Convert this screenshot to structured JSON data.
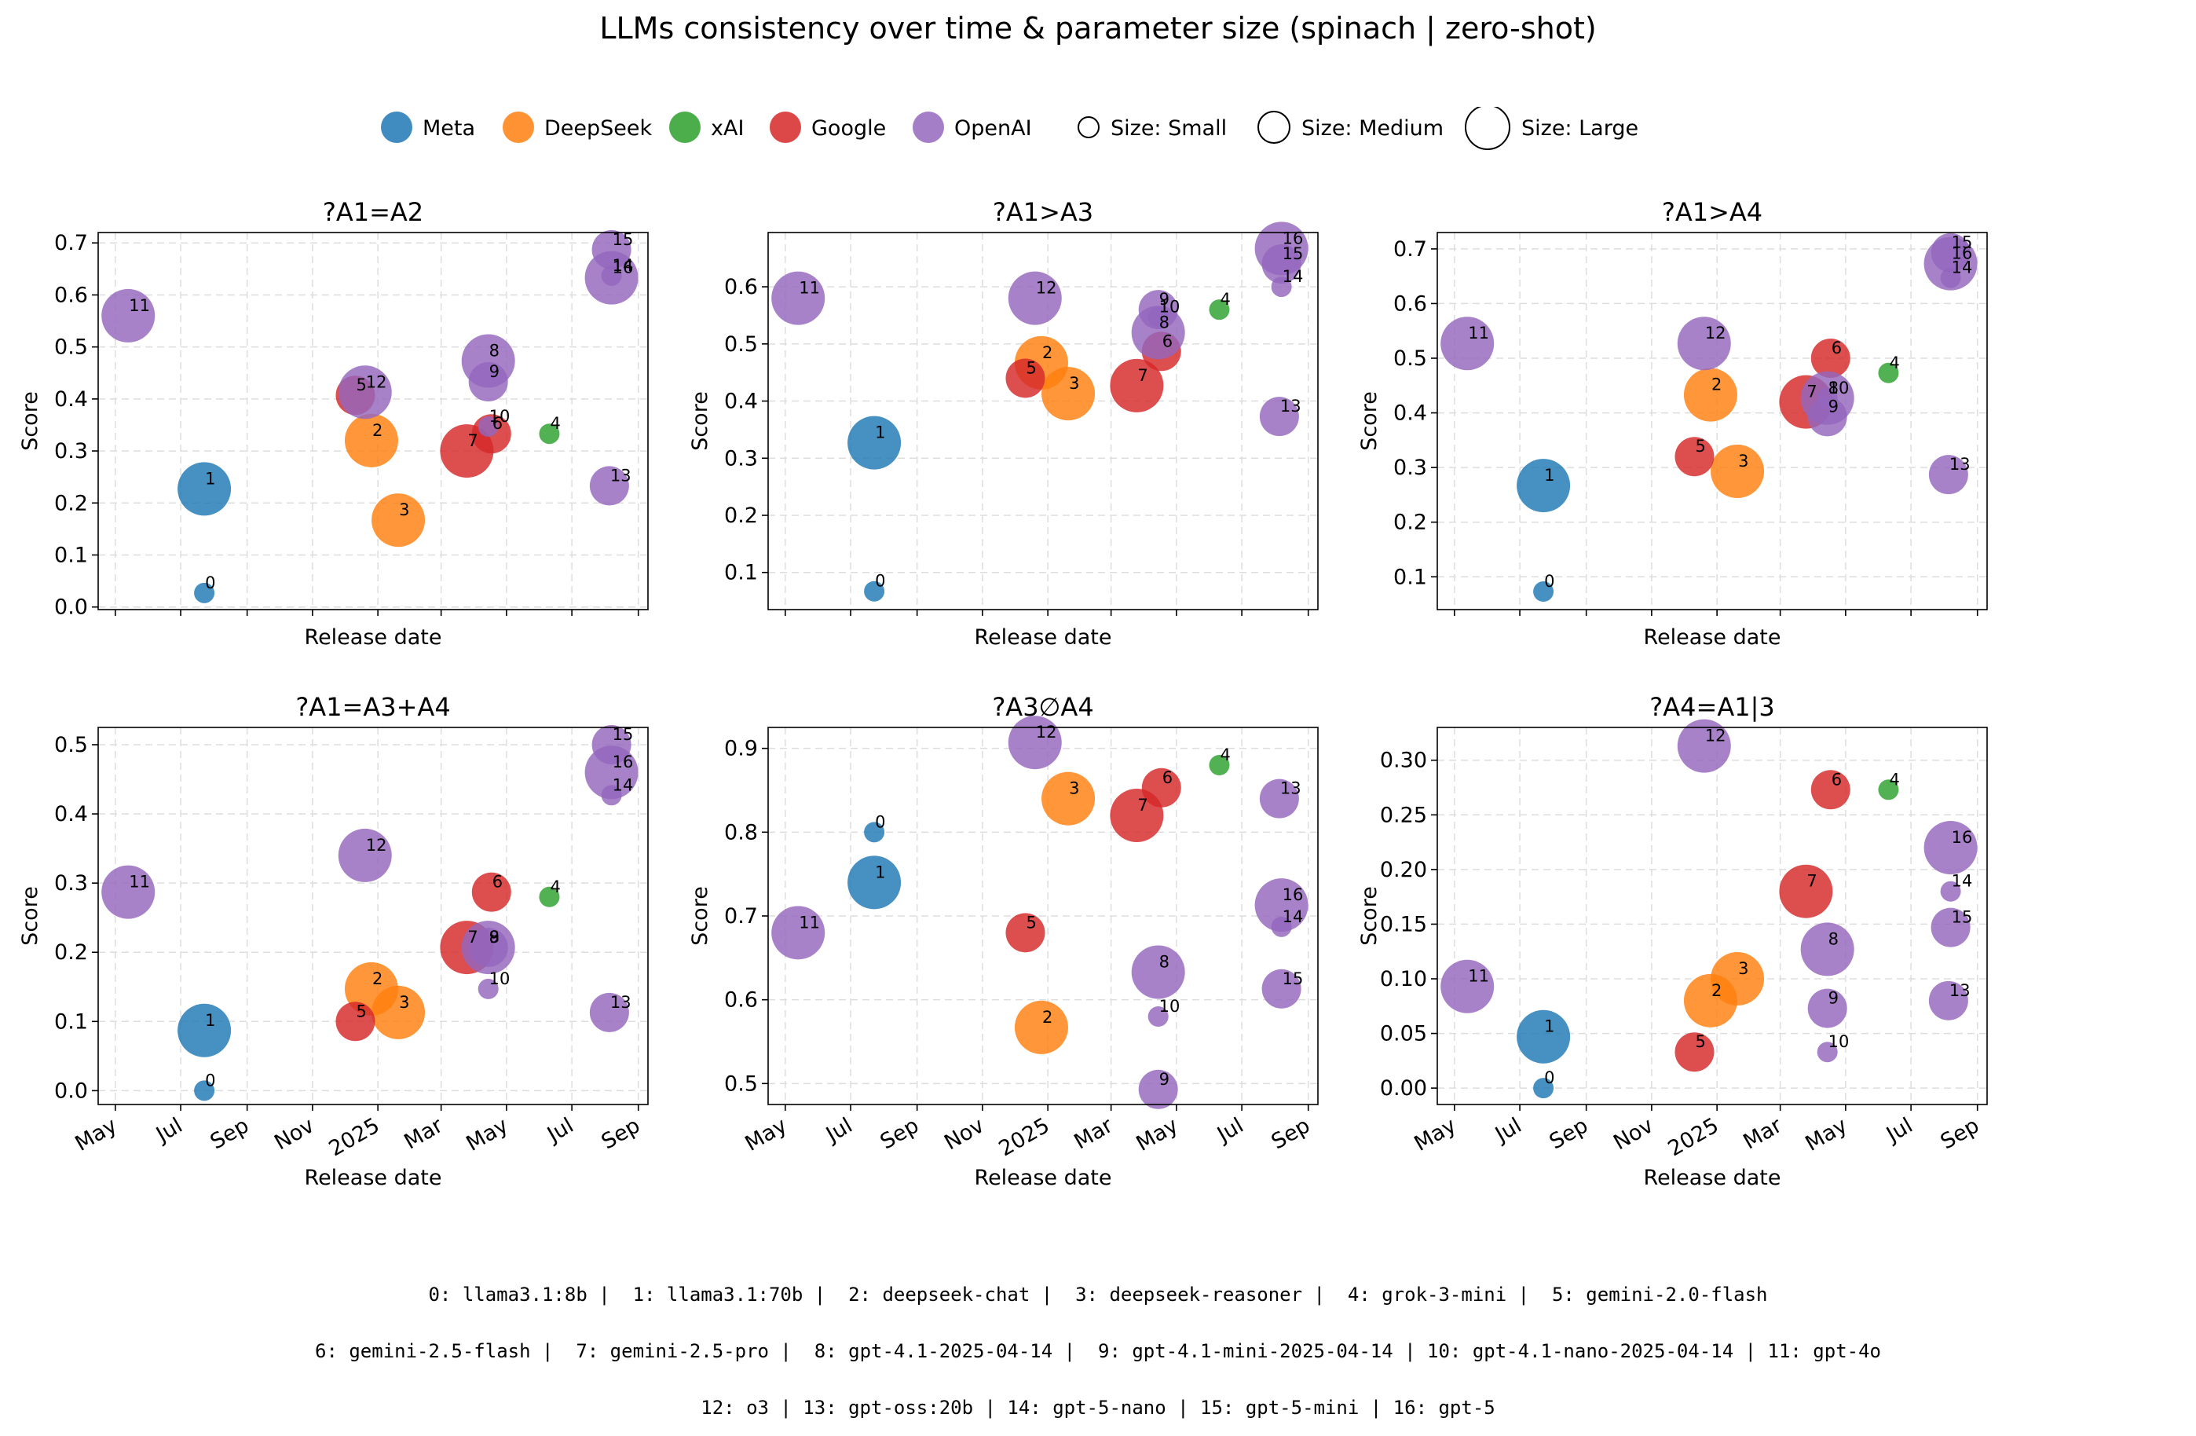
{
  "title": "LLMs consistency over time & parameter size  (spinach | zero-shot)",
  "legend": {
    "vendors": [
      {
        "name": "Meta",
        "color": "#1f77b4"
      },
      {
        "name": "DeepSeek",
        "color": "#ff7f0e"
      },
      {
        "name": "xAI",
        "color": "#2ca02c"
      },
      {
        "name": "Google",
        "color": "#d62728"
      },
      {
        "name": "OpenAI",
        "color": "#9467bd"
      }
    ],
    "sizes": [
      "Size: Small",
      "Size: Medium",
      "Size: Large"
    ]
  },
  "models": [
    {
      "id": 0,
      "name": "llama3.1:8b",
      "vendor": "Meta",
      "size": "small",
      "date": "2024-07-23"
    },
    {
      "id": 1,
      "name": "llama3.1:70b",
      "vendor": "Meta",
      "size": "large",
      "date": "2024-07-23"
    },
    {
      "id": 2,
      "name": "deepseek-chat",
      "vendor": "DeepSeek",
      "size": "large",
      "date": "2024-12-26"
    },
    {
      "id": 3,
      "name": "deepseek-reasoner",
      "vendor": "DeepSeek",
      "size": "large",
      "date": "2025-01-20"
    },
    {
      "id": 4,
      "name": "grok-3-mini",
      "vendor": "xAI",
      "size": "small",
      "date": "2025-06-10"
    },
    {
      "id": 5,
      "name": "gemini-2.0-flash",
      "vendor": "Google",
      "size": "medium",
      "date": "2024-12-11"
    },
    {
      "id": 6,
      "name": "gemini-2.5-flash",
      "vendor": "Google",
      "size": "medium",
      "date": "2025-04-17"
    },
    {
      "id": 7,
      "name": "gemini-2.5-pro",
      "vendor": "Google",
      "size": "large",
      "date": "2025-03-25"
    },
    {
      "id": 8,
      "name": "gpt-4.1-2025-04-14",
      "vendor": "OpenAI",
      "size": "large",
      "date": "2025-04-14"
    },
    {
      "id": 9,
      "name": "gpt-4.1-mini-2025-04-14",
      "vendor": "OpenAI",
      "size": "medium",
      "date": "2025-04-14"
    },
    {
      "id": 10,
      "name": "gpt-4.1-nano-2025-04-14",
      "vendor": "OpenAI",
      "size": "small",
      "date": "2025-04-14"
    },
    {
      "id": 11,
      "name": "gpt-4o",
      "vendor": "OpenAI",
      "size": "large",
      "date": "2024-05-13"
    },
    {
      "id": 12,
      "name": "o3",
      "vendor": "OpenAI",
      "size": "large",
      "date": "2024-12-20"
    },
    {
      "id": 13,
      "name": "gpt-oss:20b",
      "vendor": "OpenAI",
      "size": "medium",
      "date": "2025-08-05"
    },
    {
      "id": 14,
      "name": "gpt-5-nano",
      "vendor": "OpenAI",
      "size": "small",
      "date": "2025-08-07"
    },
    {
      "id": 15,
      "name": "gpt-5-mini",
      "vendor": "OpenAI",
      "size": "medium",
      "date": "2025-08-07"
    },
    {
      "id": 16,
      "name": "gpt-5",
      "vendor": "OpenAI",
      "size": "large",
      "date": "2025-08-07"
    }
  ],
  "footer_lines": [
    "0: llama3.1:8b |  1: llama3.1:70b |  2: deepseek-chat |  3: deepseek-reasoner |  4: grok-3-mini |  5: gemini-2.0-flash",
    "6: gemini-2.5-flash |  7: gemini-2.5-pro |  8: gpt-4.1-2025-04-14 |  9: gpt-4.1-mini-2025-04-14 | 10: gpt-4.1-nano-2025-04-14 | 11: gpt-4o",
    "12: o3 | 13: gpt-oss:20b | 14: gpt-5-nano | 15: gpt-5-mini | 16: gpt-5"
  ],
  "chart_data": [
    {
      "type": "scatter",
      "title": "?A1=A2",
      "xlabel": "Release date",
      "ylabel": "Score",
      "ylim": [
        -0.005,
        0.72
      ],
      "yticks": [
        0.0,
        0.1,
        0.2,
        0.3,
        0.4,
        0.5,
        0.6,
        0.7
      ],
      "ytick_labels": [
        "0.0",
        "0.1",
        "0.2",
        "0.3",
        "0.4",
        "0.5",
        "0.6",
        "0.7"
      ],
      "show_xtick_labels": false,
      "scores": [
        0.027,
        0.227,
        0.32,
        0.167,
        0.333,
        0.407,
        0.333,
        0.3,
        0.473,
        0.433,
        0.347,
        0.56,
        0.413,
        0.233,
        0.637,
        0.687,
        0.633
      ]
    },
    {
      "type": "scatter",
      "title": "?A1>A3",
      "xlabel": "Release date",
      "ylabel": "Score",
      "ylim": [
        0.035,
        0.695
      ],
      "yticks": [
        0.1,
        0.2,
        0.3,
        0.4,
        0.5,
        0.6
      ],
      "ytick_labels": [
        "0.1",
        "0.2",
        "0.3",
        "0.4",
        "0.5",
        "0.6"
      ],
      "show_xtick_labels": false,
      "scores": [
        0.067,
        0.327,
        0.467,
        0.413,
        0.56,
        0.44,
        0.487,
        0.427,
        0.52,
        0.56,
        0.547,
        0.58,
        0.58,
        0.373,
        0.6,
        0.64,
        0.667
      ]
    },
    {
      "type": "scatter",
      "title": "?A1>A4",
      "xlabel": "Release date",
      "ylabel": "Score",
      "ylim": [
        0.04,
        0.73
      ],
      "yticks": [
        0.1,
        0.2,
        0.3,
        0.4,
        0.5,
        0.6,
        0.7
      ],
      "ytick_labels": [
        "0.1",
        "0.2",
        "0.3",
        "0.4",
        "0.5",
        "0.6",
        "0.7"
      ],
      "show_xtick_labels": false,
      "scores": [
        0.073,
        0.267,
        0.433,
        0.293,
        0.473,
        0.32,
        0.5,
        0.42,
        0.427,
        0.393,
        0.427,
        0.527,
        0.527,
        0.287,
        0.647,
        0.693,
        0.673
      ]
    },
    {
      "type": "scatter",
      "title": "?A1=A3+A4",
      "xlabel": "Release date",
      "ylabel": "Score",
      "ylim": [
        -0.02,
        0.525
      ],
      "yticks": [
        0.0,
        0.1,
        0.2,
        0.3,
        0.4,
        0.5
      ],
      "ytick_labels": [
        "0.0",
        "0.1",
        "0.2",
        "0.3",
        "0.4",
        "0.5"
      ],
      "show_xtick_labels": true,
      "scores": [
        0.0,
        0.087,
        0.147,
        0.113,
        0.28,
        0.1,
        0.287,
        0.207,
        0.207,
        0.207,
        0.147,
        0.287,
        0.34,
        0.113,
        0.427,
        0.5,
        0.46
      ]
    },
    {
      "type": "scatter",
      "title": "?A3∅A4",
      "xlabel": "Release date",
      "ylabel": "Score",
      "ylim": [
        0.475,
        0.925
      ],
      "yticks": [
        0.5,
        0.6,
        0.7,
        0.8,
        0.9
      ],
      "ytick_labels": [
        "0.5",
        "0.6",
        "0.7",
        "0.8",
        "0.9"
      ],
      "show_xtick_labels": true,
      "scores": [
        0.8,
        0.74,
        0.567,
        0.84,
        0.88,
        0.68,
        0.853,
        0.82,
        0.633,
        0.493,
        0.58,
        0.68,
        0.907,
        0.84,
        0.687,
        0.613,
        0.713
      ]
    },
    {
      "type": "scatter",
      "title": "?A4=A1|3",
      "xlabel": "Release date",
      "ylabel": "Score",
      "ylim": [
        -0.015,
        0.33
      ],
      "yticks": [
        0.0,
        0.05,
        0.1,
        0.15,
        0.2,
        0.25,
        0.3
      ],
      "ytick_labels": [
        "0.00",
        "0.05",
        "0.10",
        "0.15",
        "0.20",
        "0.25",
        "0.30"
      ],
      "show_xtick_labels": true,
      "scores": [
        0.0,
        0.047,
        0.08,
        0.1,
        0.273,
        0.033,
        0.273,
        0.18,
        0.127,
        0.073,
        0.033,
        0.093,
        0.313,
        0.08,
        0.18,
        0.147,
        0.22
      ]
    }
  ],
  "x_axis": {
    "range": [
      "2024-04-15",
      "2025-09-10"
    ],
    "ticks": [
      {
        "date": "2024-05-01",
        "label": "May"
      },
      {
        "date": "2024-07-01",
        "label": "Jul"
      },
      {
        "date": "2024-09-01",
        "label": "Sep"
      },
      {
        "date": "2024-11-01",
        "label": "Nov"
      },
      {
        "date": "2025-01-01",
        "label": "2025"
      },
      {
        "date": "2025-03-01",
        "label": "Mar"
      },
      {
        "date": "2025-05-01",
        "label": "May"
      },
      {
        "date": "2025-07-01",
        "label": "Jul"
      },
      {
        "date": "2025-09-01",
        "label": "Sep"
      }
    ]
  }
}
